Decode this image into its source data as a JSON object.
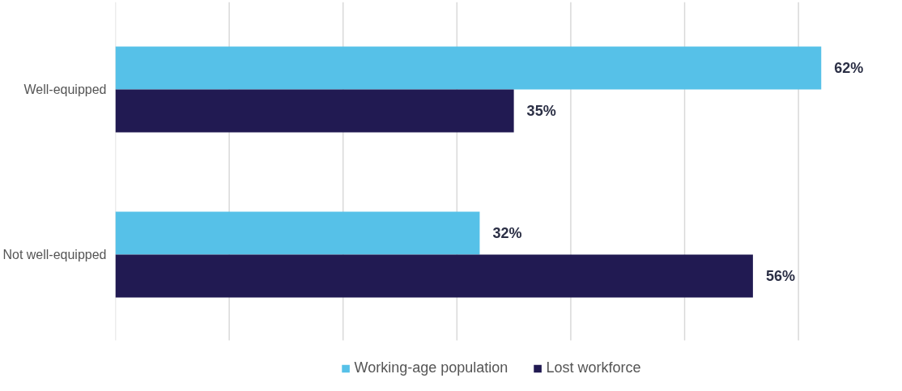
{
  "chart_data": {
    "type": "bar",
    "orientation": "horizontal",
    "categories": [
      "Well-equipped",
      "Not well-equipped"
    ],
    "series": [
      {
        "name": "Working-age population",
        "color": "#56c1e8",
        "values": [
          62,
          32
        ],
        "value_labels": [
          "62%",
          "32%"
        ]
      },
      {
        "name": "Lost workforce",
        "color": "#211a52",
        "values": [
          35,
          56
        ],
        "value_labels": [
          "35%",
          "56%"
        ]
      }
    ],
    "xticks": [
      {
        "value": 0,
        "label": null
      },
      {
        "value": 10,
        "label": null
      },
      {
        "value": 20,
        "label": null
      },
      {
        "value": 30,
        "label": null
      },
      {
        "value": 40,
        "label": null
      },
      {
        "value": 50,
        "label": null
      },
      {
        "value": 60,
        "label": null
      }
    ],
    "tick_labels": "y",
    "grid": "x",
    "legend": "bottom"
  }
}
